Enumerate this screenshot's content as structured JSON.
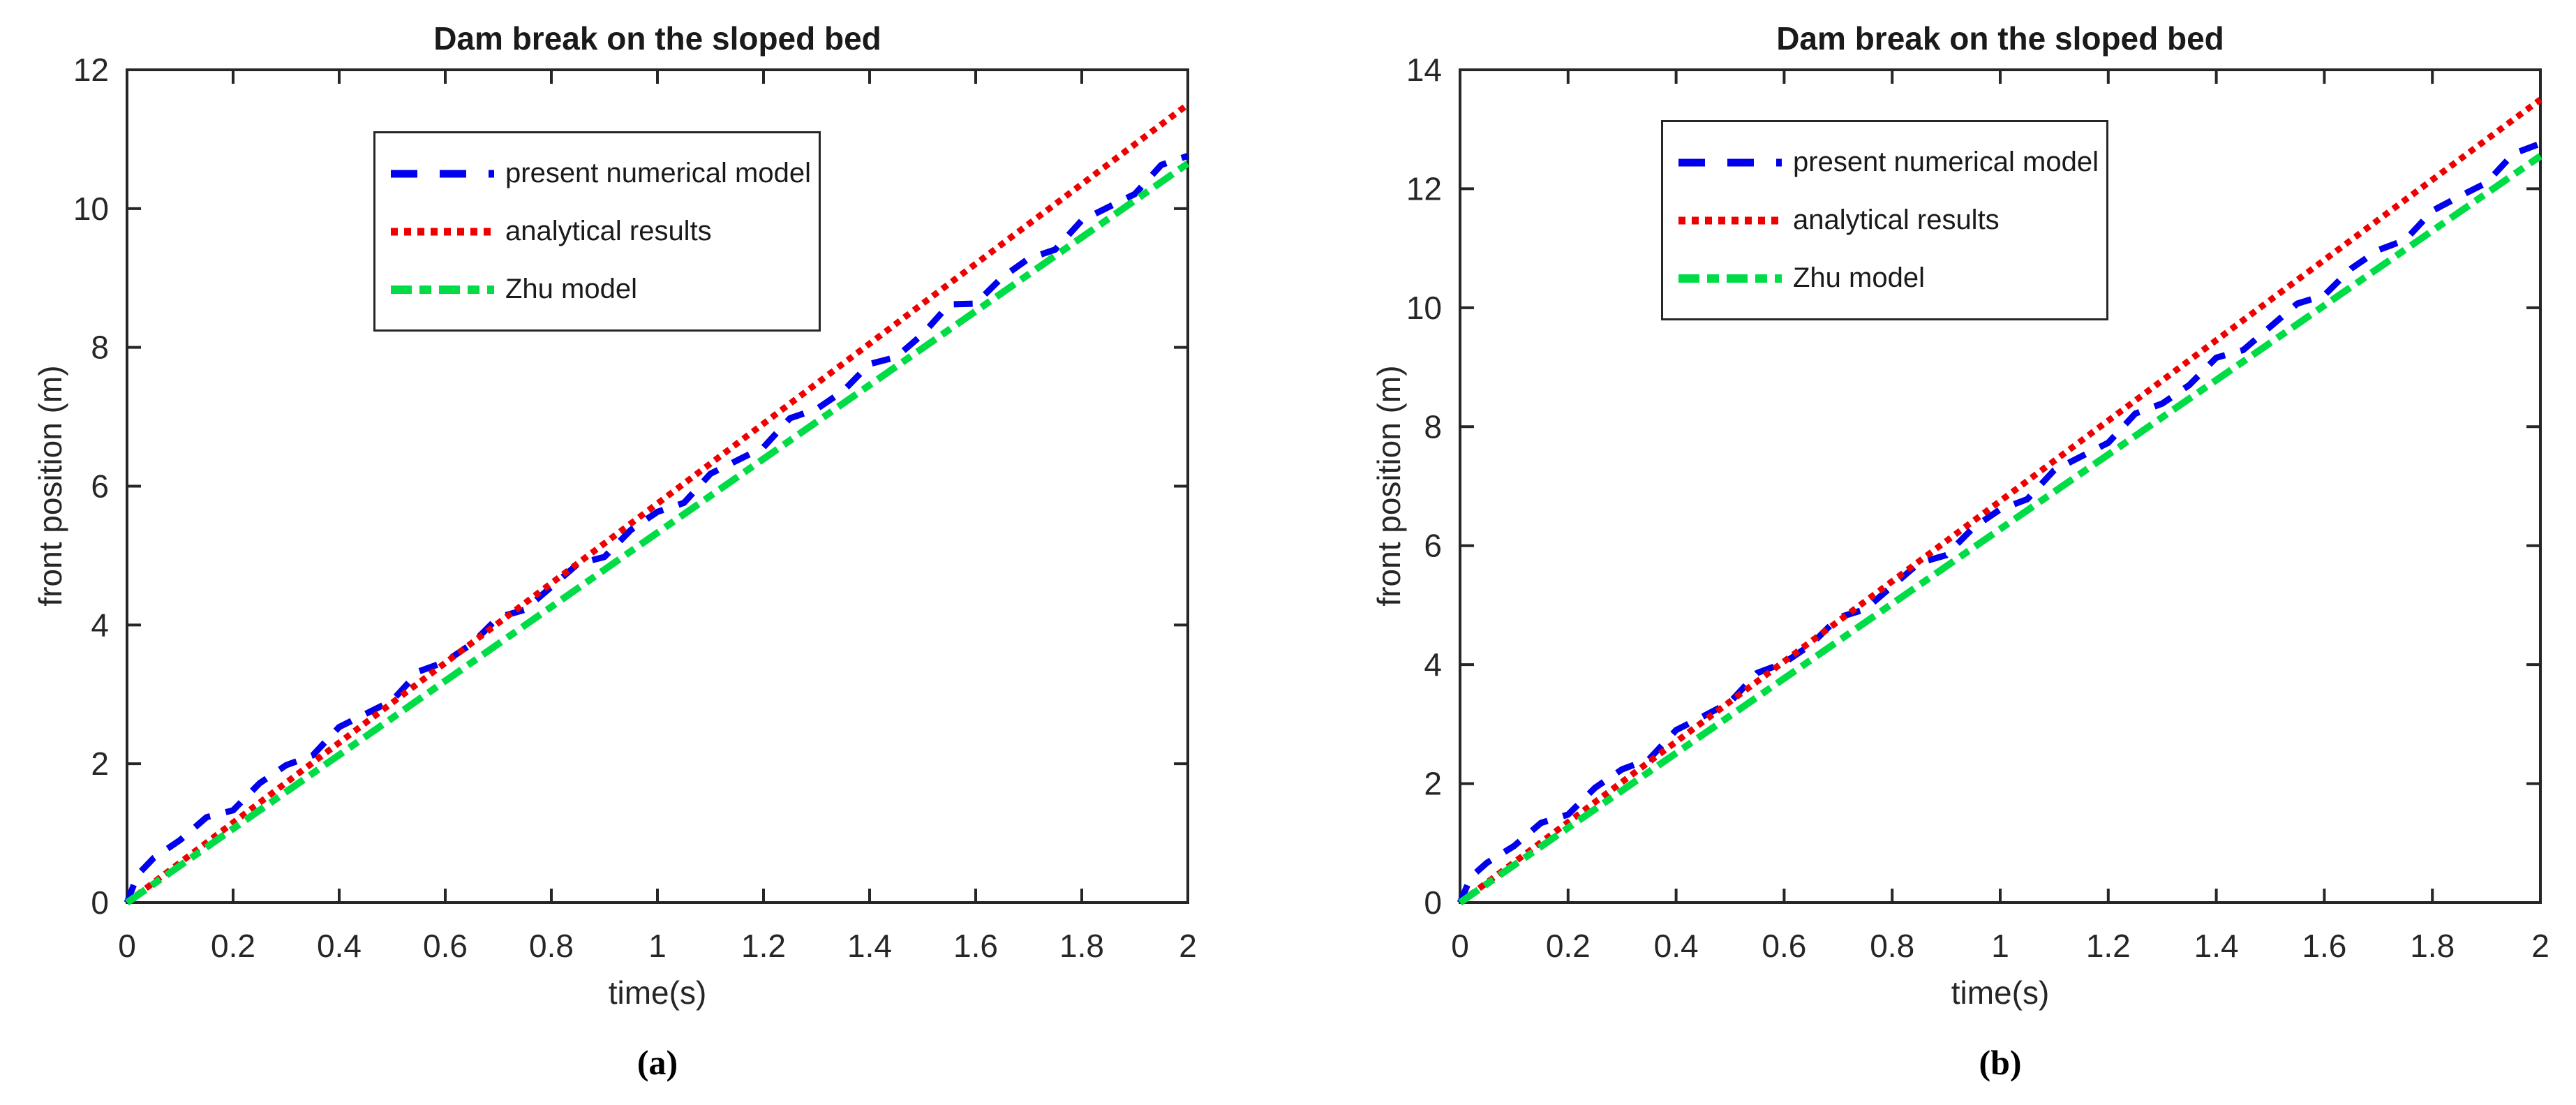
{
  "page": {
    "background": "#ffffff"
  },
  "style": {
    "axis_color": "#262626",
    "text_color": "#1a1a1a"
  },
  "axes": {
    "xlabel": "time(s)",
    "ylabel": "front position (m)"
  },
  "panels": {
    "a": {
      "title": "Dam break on the sloped bed",
      "caption": "(a)"
    },
    "b": {
      "title": "Dam break on the sloped bed",
      "caption": "(b)"
    }
  },
  "legend": {
    "items": [
      {
        "label": "present numerical model",
        "color": "#0000EE",
        "style": "dashed"
      },
      {
        "label": "analytical results",
        "color": "#EE0000",
        "style": "dotted"
      },
      {
        "label": "Zhu model",
        "color": "#00DC46",
        "style": "dashdot"
      }
    ]
  },
  "chart_data": [
    {
      "type": "line",
      "panel": "a",
      "title": "Dam break on the sloped bed",
      "xlabel": "time(s)",
      "ylabel": "front position (m)",
      "xlim": [
        0,
        2
      ],
      "ylim": [
        0,
        12
      ],
      "xticks": [
        0,
        0.2,
        0.4,
        0.6,
        0.8,
        1,
        1.2,
        1.4,
        1.6,
        1.8,
        2
      ],
      "xtick_labels": [
        "0",
        "0.2",
        "0.4",
        "0.6",
        "0.8",
        "1",
        "1.2",
        "1.4",
        "1.6",
        "1.8",
        "2"
      ],
      "yticks": [
        0,
        2,
        4,
        6,
        8,
        10,
        12
      ],
      "ytick_labels": [
        "0",
        "2",
        "4",
        "6",
        "8",
        "10",
        "12"
      ],
      "grid": false,
      "legend_position": "upper-left-inside",
      "series": [
        {
          "name": "present numerical model",
          "color": "#0000EE",
          "style": "dashed",
          "x": [
            0,
            0.02,
            0.05,
            0.1,
            0.15,
            0.2,
            0.25,
            0.3,
            0.35,
            0.4,
            0.45,
            0.5,
            0.55,
            0.6,
            0.65,
            0.7,
            0.75,
            0.8,
            0.85,
            0.9,
            0.95,
            1,
            1.05,
            1.1,
            1.15,
            1.2,
            1.25,
            1.3,
            1.35,
            1.4,
            1.45,
            1.5,
            1.55,
            1.6,
            1.65,
            1.7,
            1.75,
            1.8,
            1.85,
            1.9,
            1.95,
            2
          ],
          "y": [
            0,
            0.4,
            0.64,
            0.9,
            1.23,
            1.33,
            1.72,
            1.98,
            2.12,
            2.53,
            2.72,
            2.91,
            3.33,
            3.47,
            3.73,
            4.11,
            4.22,
            4.55,
            4.88,
            4.98,
            5.37,
            5.63,
            5.76,
            6.18,
            6.37,
            6.56,
            6.98,
            7.11,
            7.37,
            7.76,
            7.86,
            8.19,
            8.62,
            8.63,
            9.01,
            9.28,
            9.41,
            9.83,
            10.02,
            10.21,
            10.63,
            10.76
          ]
        },
        {
          "name": "analytical results",
          "color": "#EE0000",
          "style": "dotted",
          "x": [
            0,
            0.5,
            1,
            1.5,
            2
          ],
          "y": [
            0,
            2.88,
            5.75,
            8.63,
            11.5
          ]
        },
        {
          "name": "Zhu model",
          "color": "#00DC46",
          "style": "dashdot",
          "x": [
            0,
            0.5,
            1,
            1.5,
            2
          ],
          "y": [
            0,
            2.66,
            5.33,
            7.99,
            10.65
          ]
        }
      ]
    },
    {
      "type": "line",
      "panel": "b",
      "title": "Dam break on the sloped bed",
      "xlabel": "time(s)",
      "ylabel": "front position (m)",
      "xlim": [
        0,
        2
      ],
      "ylim": [
        0,
        14
      ],
      "xticks": [
        0,
        0.2,
        0.4,
        0.6,
        0.8,
        1,
        1.2,
        1.4,
        1.6,
        1.8,
        2
      ],
      "xtick_labels": [
        "0",
        "0.2",
        "0.4",
        "0.6",
        "0.8",
        "1",
        "1.2",
        "1.4",
        "1.6",
        "1.8",
        "2"
      ],
      "yticks": [
        0,
        2,
        4,
        6,
        8,
        10,
        12,
        14
      ],
      "ytick_labels": [
        "0",
        "2",
        "4",
        "6",
        "8",
        "10",
        "12",
        "14"
      ],
      "grid": false,
      "legend_position": "upper-left-inside",
      "series": [
        {
          "name": "present numerical model",
          "color": "#0000EE",
          "style": "dashed",
          "x": [
            0,
            0.02,
            0.05,
            0.1,
            0.15,
            0.2,
            0.25,
            0.3,
            0.35,
            0.4,
            0.45,
            0.5,
            0.55,
            0.6,
            0.65,
            0.7,
            0.75,
            0.8,
            0.85,
            0.9,
            0.95,
            1,
            1.05,
            1.1,
            1.15,
            1.2,
            1.25,
            1.3,
            1.35,
            1.4,
            1.45,
            1.5,
            1.55,
            1.6,
            1.65,
            1.7,
            1.75,
            1.8,
            1.85,
            1.9,
            1.95,
            2
          ],
          "y": [
            0,
            0.43,
            0.67,
            0.95,
            1.34,
            1.48,
            1.93,
            2.24,
            2.41,
            2.9,
            3.13,
            3.37,
            3.86,
            4.03,
            4.34,
            4.79,
            4.93,
            5.32,
            5.71,
            5.84,
            6.3,
            6.61,
            6.78,
            7.27,
            7.5,
            7.73,
            8.22,
            8.39,
            8.7,
            9.16,
            9.29,
            9.68,
            10.07,
            10.21,
            10.66,
            10.97,
            11.14,
            11.63,
            11.87,
            12.1,
            12.59,
            12.76
          ]
        },
        {
          "name": "analytical results",
          "color": "#EE0000",
          "style": "dotted",
          "x": [
            0,
            0.5,
            1,
            1.5,
            2
          ],
          "y": [
            0,
            3.38,
            6.75,
            10.13,
            13.5
          ]
        },
        {
          "name": "Zhu model",
          "color": "#00DC46",
          "style": "dashdot",
          "x": [
            0,
            0.5,
            1,
            1.5,
            2
          ],
          "y": [
            0,
            3.14,
            6.28,
            9.41,
            12.55
          ]
        }
      ]
    }
  ]
}
